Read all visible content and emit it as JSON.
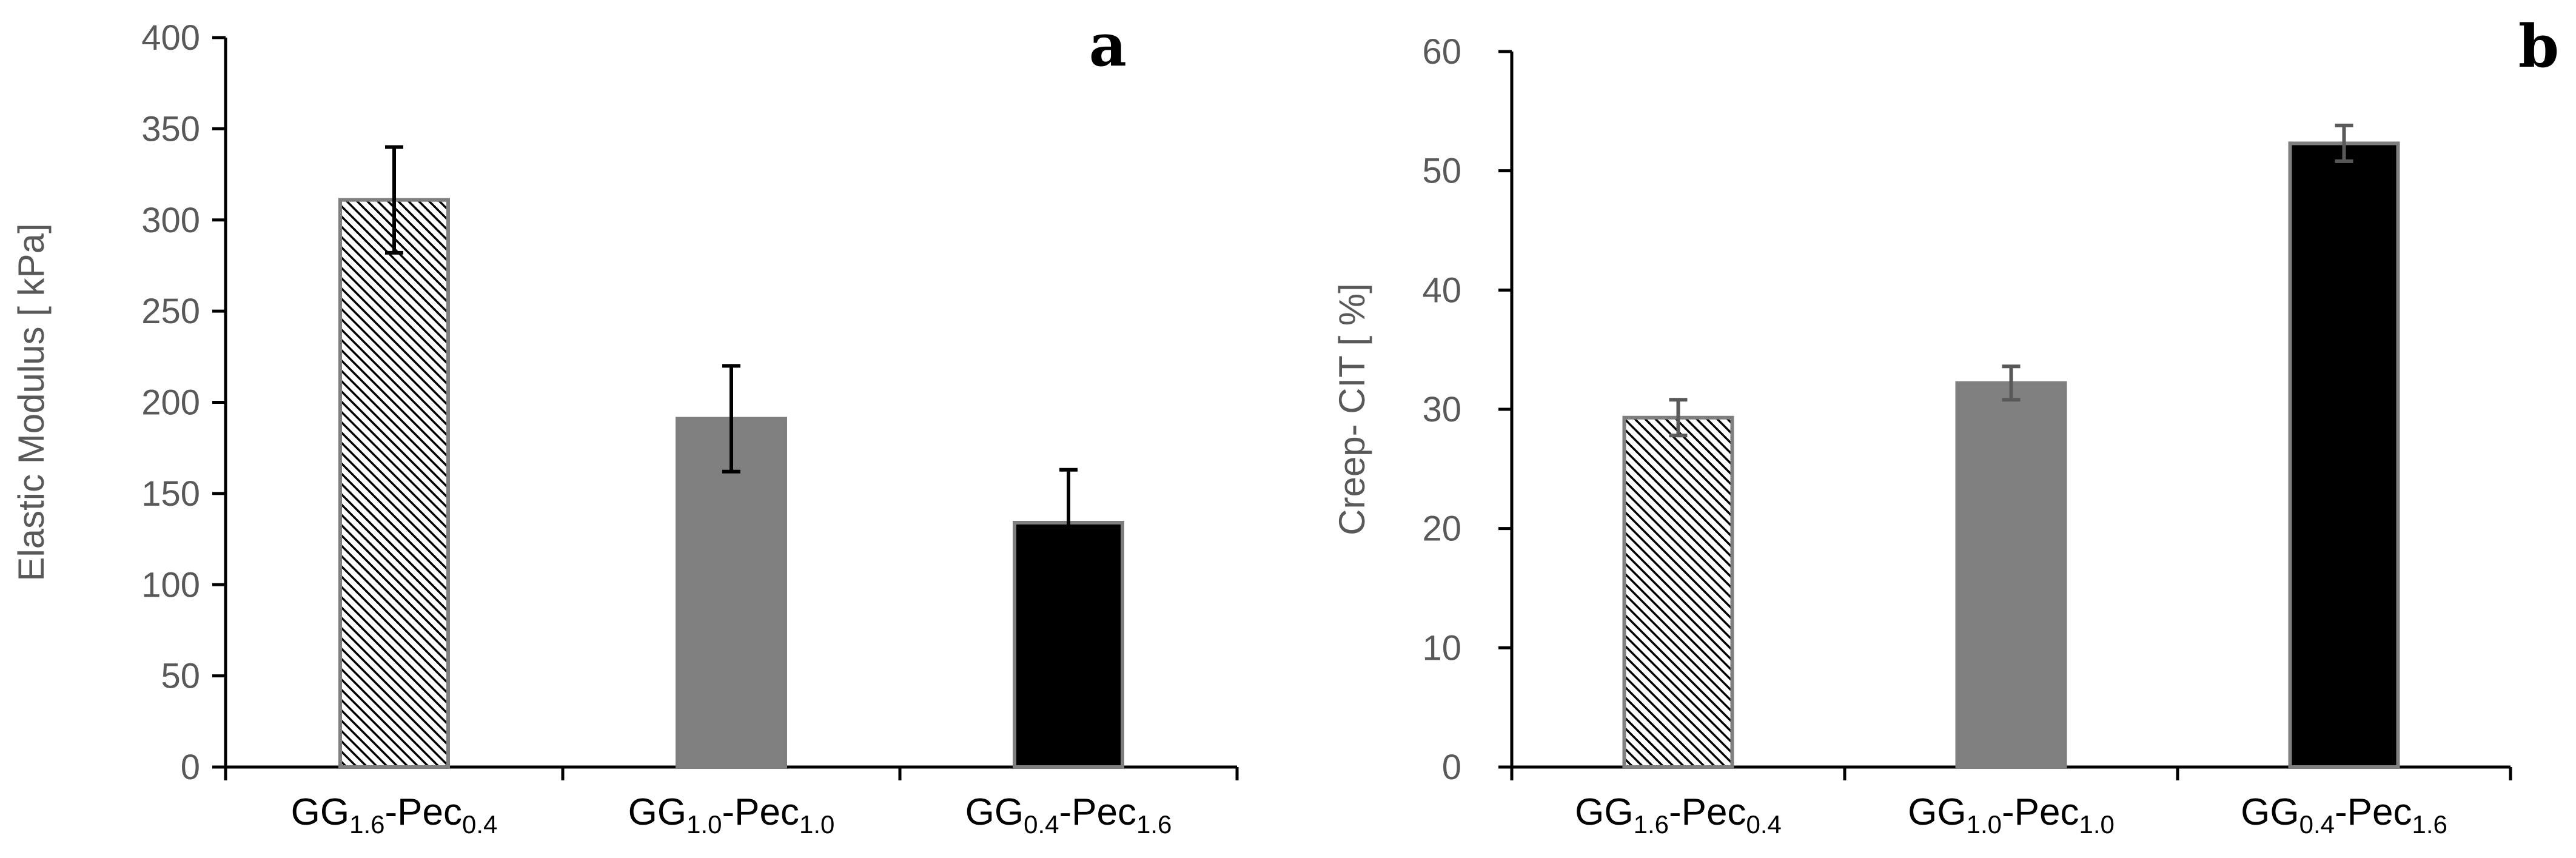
{
  "chart_data": [
    {
      "type": "bar",
      "panel_label": "a",
      "title": "",
      "xlabel": "",
      "ylabel": "Elastic Modulus [ kPa]",
      "ylim": [
        0,
        400
      ],
      "yticks": [
        0,
        50,
        100,
        150,
        200,
        250,
        300,
        350,
        400
      ],
      "categories": [
        {
          "base1": "GG",
          "sub1": "1.6",
          "base2": "-Pec",
          "sub2": "0.4"
        },
        {
          "base1": "GG",
          "sub1": "1.0",
          "base2": "-Pec",
          "sub2": "1.0"
        },
        {
          "base1": "GG",
          "sub1": "0.4",
          "base2": "-Pec",
          "sub2": "1.6"
        }
      ],
      "values": [
        311,
        191,
        134
      ],
      "errors": [
        29,
        29,
        29
      ],
      "fills": [
        "hatch",
        "#808080",
        "#000000"
      ],
      "error_color": "#000000",
      "grid": false
    },
    {
      "type": "bar",
      "panel_label": "b",
      "title": "",
      "xlabel": "",
      "ylabel": "Creep- CIT [ %]",
      "ylim": [
        0,
        60
      ],
      "yticks": [
        0,
        10,
        20,
        30,
        40,
        50,
        60
      ],
      "categories": [
        {
          "base1": "GG",
          "sub1": "1.6",
          "base2": "-Pec",
          "sub2": "0.4"
        },
        {
          "base1": "GG",
          "sub1": "1.0",
          "base2": "-Pec",
          "sub2": "1.0"
        },
        {
          "base1": "GG",
          "sub1": "0.4",
          "base2": "-Pec",
          "sub2": "1.6"
        }
      ],
      "values": [
        29.3,
        32.2,
        52.3
      ],
      "errors": [
        1.5,
        1.4,
        1.5
      ],
      "fills": [
        "hatch",
        "#808080",
        "#000000"
      ],
      "error_color": "#595959",
      "grid": false
    }
  ]
}
